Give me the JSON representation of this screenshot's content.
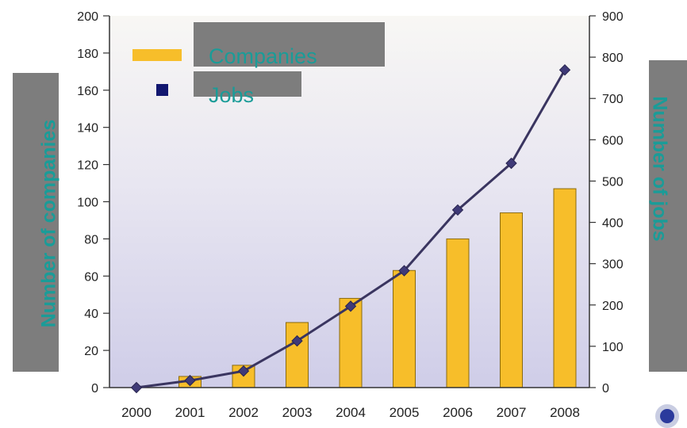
{
  "chart_data": {
    "type": "bar",
    "categories": [
      "2000",
      "2001",
      "2002",
      "2003",
      "2004",
      "2005",
      "2006",
      "2007",
      "2008"
    ],
    "series": [
      {
        "name": "Companies",
        "type": "bar",
        "axis": "left",
        "values": [
          0,
          6,
          12,
          35,
          48,
          63,
          80,
          94,
          107
        ]
      },
      {
        "name": "Jobs",
        "type": "line",
        "axis": "right",
        "values": [
          0,
          17,
          40,
          113,
          197,
          283,
          430,
          543,
          769
        ]
      }
    ],
    "ylabel": "Number of companies",
    "y2label": "Number of jobs",
    "ylim": [
      0,
      200
    ],
    "y2lim": [
      0,
      900
    ],
    "yticks": [
      "0",
      "20",
      "40",
      "60",
      "80",
      "100",
      "120",
      "140",
      "160",
      "180",
      "200"
    ],
    "y2ticks": [
      "0",
      "100",
      "200",
      "300",
      "400",
      "500",
      "600",
      "700",
      "800",
      "900"
    ],
    "grid": false,
    "legend": "top-left",
    "colors": {
      "bar": "#f7be2a",
      "bar_edge": "#8a6a10",
      "line": "#3a3560",
      "marker": "#3f3a78",
      "title_text": "#1a9c98",
      "title_box": "#7d7d7d"
    }
  }
}
